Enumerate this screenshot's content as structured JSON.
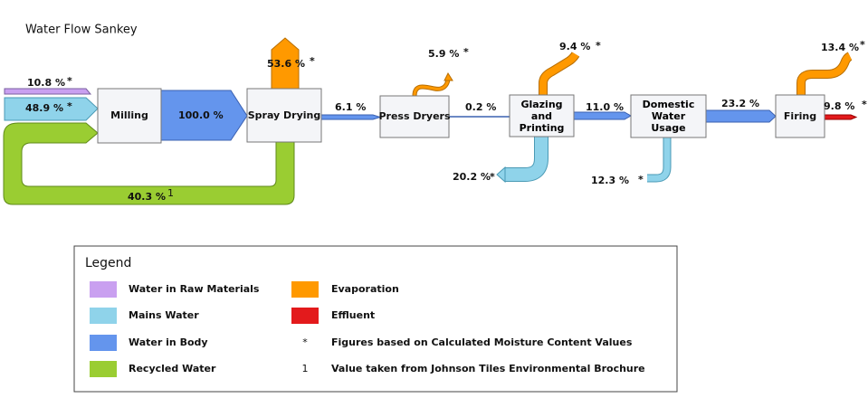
{
  "title": "Water Flow Sankey",
  "nodes": [
    {
      "label": "Milling"
    },
    {
      "label": "Spray Drying"
    },
    {
      "label": "Press Dryers"
    },
    {
      "label": "Glazing and Printing"
    },
    {
      "label": "Domestic Water Usage"
    },
    {
      "label": "Firing"
    }
  ],
  "flows": [
    {
      "label": "10.8 %",
      "note": "*"
    },
    {
      "label": "48.9 %",
      "note": "*"
    },
    {
      "label": "100.0 %"
    },
    {
      "label": "40.3 %",
      "note": "1"
    },
    {
      "label": "53.6 %",
      "note": "*"
    },
    {
      "label": "6.1 %"
    },
    {
      "label": "5.9 %",
      "note": "*"
    },
    {
      "label": "0.2 %"
    },
    {
      "label": "9.4 %",
      "note": "*"
    },
    {
      "label": "20.2 %",
      "note": "*"
    },
    {
      "label": "11.0 %"
    },
    {
      "label": "12.3 %",
      "note": "*"
    },
    {
      "label": "23.2 %"
    },
    {
      "label": "13.4 %",
      "note": "*"
    },
    {
      "label": "9.8 %",
      "note": "*"
    }
  ],
  "legend": {
    "title": "Legend",
    "items": [
      {
        "label": "Water in Raw Materials"
      },
      {
        "label": "Mains Water"
      },
      {
        "label": "Water in Body"
      },
      {
        "label": "Recycled Water"
      },
      {
        "label": "Evaporation"
      },
      {
        "label": "Effluent"
      }
    ],
    "notes": [
      {
        "symbol": "*",
        "label": "Figures based on Calculated Moisture Content Values"
      },
      {
        "symbol": "1",
        "label": "Value taken from Johnson Tiles Environmental Brochure"
      }
    ]
  }
}
